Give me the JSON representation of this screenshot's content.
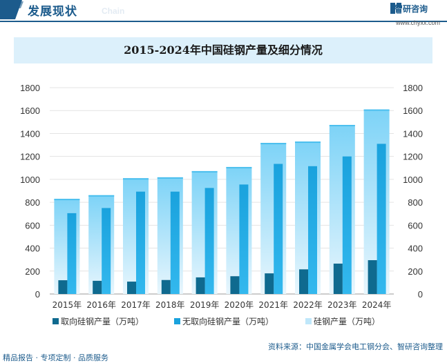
{
  "header": {
    "title": "发展现状",
    "subtitle": "Chain"
  },
  "brand": {
    "name": "智研咨询",
    "url": "www.chyxx.com"
  },
  "footer": {
    "left": "精品报告 · 专项定制 · 品质服务",
    "source": "资料来源：中国金属学会电工钢分会、智研咨询整理"
  },
  "colors": {
    "oriented": "#0f6a8f",
    "non_oriented": "#1aa2dd",
    "total_top": "#7dd3f7",
    "total_bottom": "#e8f6fd",
    "accent": "#1c5b8c"
  },
  "chart_data": {
    "type": "bar",
    "title": "2015-2024年中国硅钢产量及细分情况",
    "categories": [
      "2015年",
      "2016年",
      "2017年",
      "2018年",
      "2019年",
      "2020年",
      "2021年",
      "2022年",
      "2023年",
      "2024年"
    ],
    "series": [
      {
        "name": "取向硅钢产量（万吨）",
        "values": [
          120,
          115,
          108,
          122,
          145,
          155,
          180,
          215,
          265,
          295
        ]
      },
      {
        "name": "无取向硅钢产量（万吨）",
        "values": [
          705,
          750,
          893,
          893,
          925,
          955,
          1135,
          1115,
          1200,
          1310
        ]
      },
      {
        "name": "硅钢产量（万吨）",
        "values": [
          830,
          862,
          1010,
          1018,
          1072,
          1108,
          1318,
          1330,
          1475,
          1610
        ]
      }
    ],
    "ylim": [
      0,
      1800
    ],
    "yticks": [
      0,
      200,
      400,
      600,
      800,
      1000,
      1200,
      1400,
      1600,
      1800
    ],
    "grid": true,
    "legend": "bottom"
  }
}
